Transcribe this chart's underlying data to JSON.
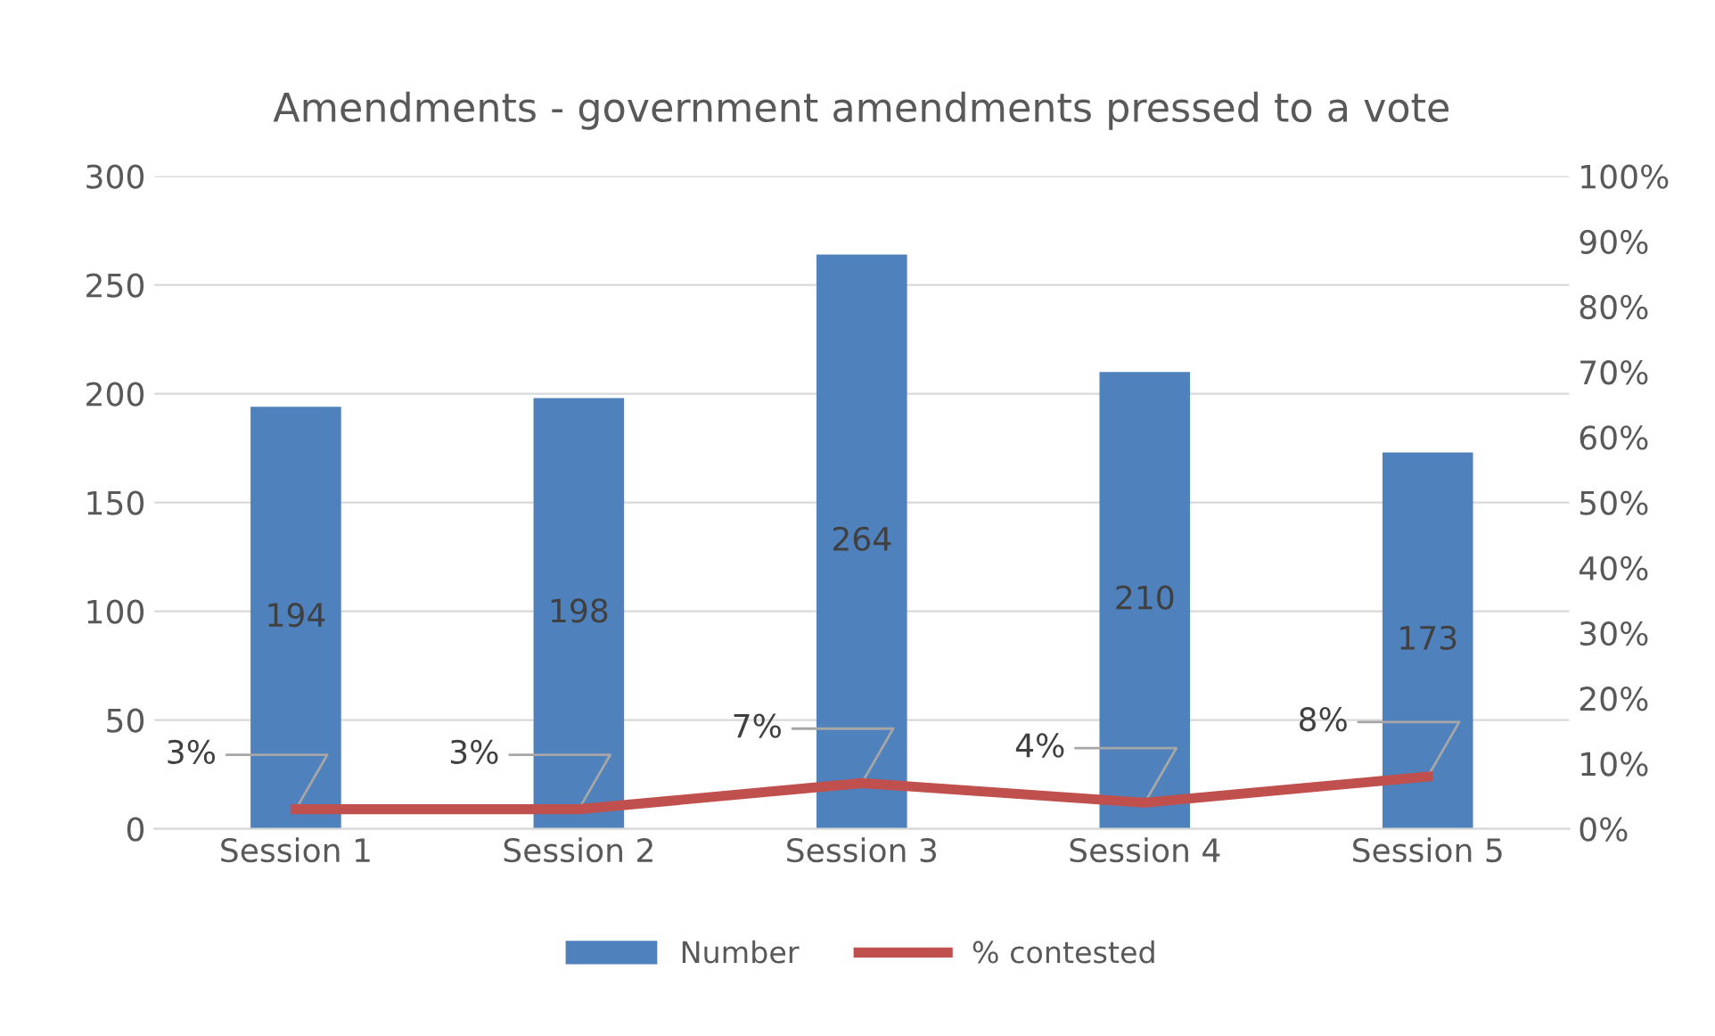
{
  "chart_data": {
    "type": "bar",
    "title": "Amendments - government amendments pressed to a vote",
    "categories": [
      "Session 1",
      "Session 2",
      "Session 3",
      "Session 4",
      "Session 5"
    ],
    "series": [
      {
        "name": "Number",
        "color": "#4f81bd",
        "values": [
          194,
          198,
          264,
          210,
          173
        ],
        "value_labels": [
          "194",
          "198",
          "264",
          "210",
          "173"
        ]
      },
      {
        "name": "% contested",
        "type": "line",
        "axis": "y2",
        "color": "#c0504d",
        "values": [
          3,
          3,
          7,
          4,
          8
        ],
        "value_labels": [
          "3%",
          "3%",
          "7%",
          "4%",
          "8%"
        ]
      }
    ],
    "ylim": [
      0,
      300
    ],
    "yticks": [
      0,
      50,
      100,
      150,
      200,
      250,
      300
    ],
    "y2lim": [
      0,
      100
    ],
    "y2ticks": [
      {
        "value": 0,
        "label": "0%"
      },
      {
        "value": 10,
        "label": "10%"
      },
      {
        "value": 20,
        "label": "20%"
      },
      {
        "value": 30,
        "label": "30%"
      },
      {
        "value": 40,
        "label": "40%"
      },
      {
        "value": 50,
        "label": "50%"
      },
      {
        "value": 60,
        "label": "60%"
      },
      {
        "value": 70,
        "label": "70%"
      },
      {
        "value": 80,
        "label": "80%"
      },
      {
        "value": 90,
        "label": "90%"
      },
      {
        "value": 100,
        "label": "100%"
      }
    ],
    "grid": "y",
    "legend": "bottom",
    "marker": "none",
    "line_style": "solid"
  }
}
